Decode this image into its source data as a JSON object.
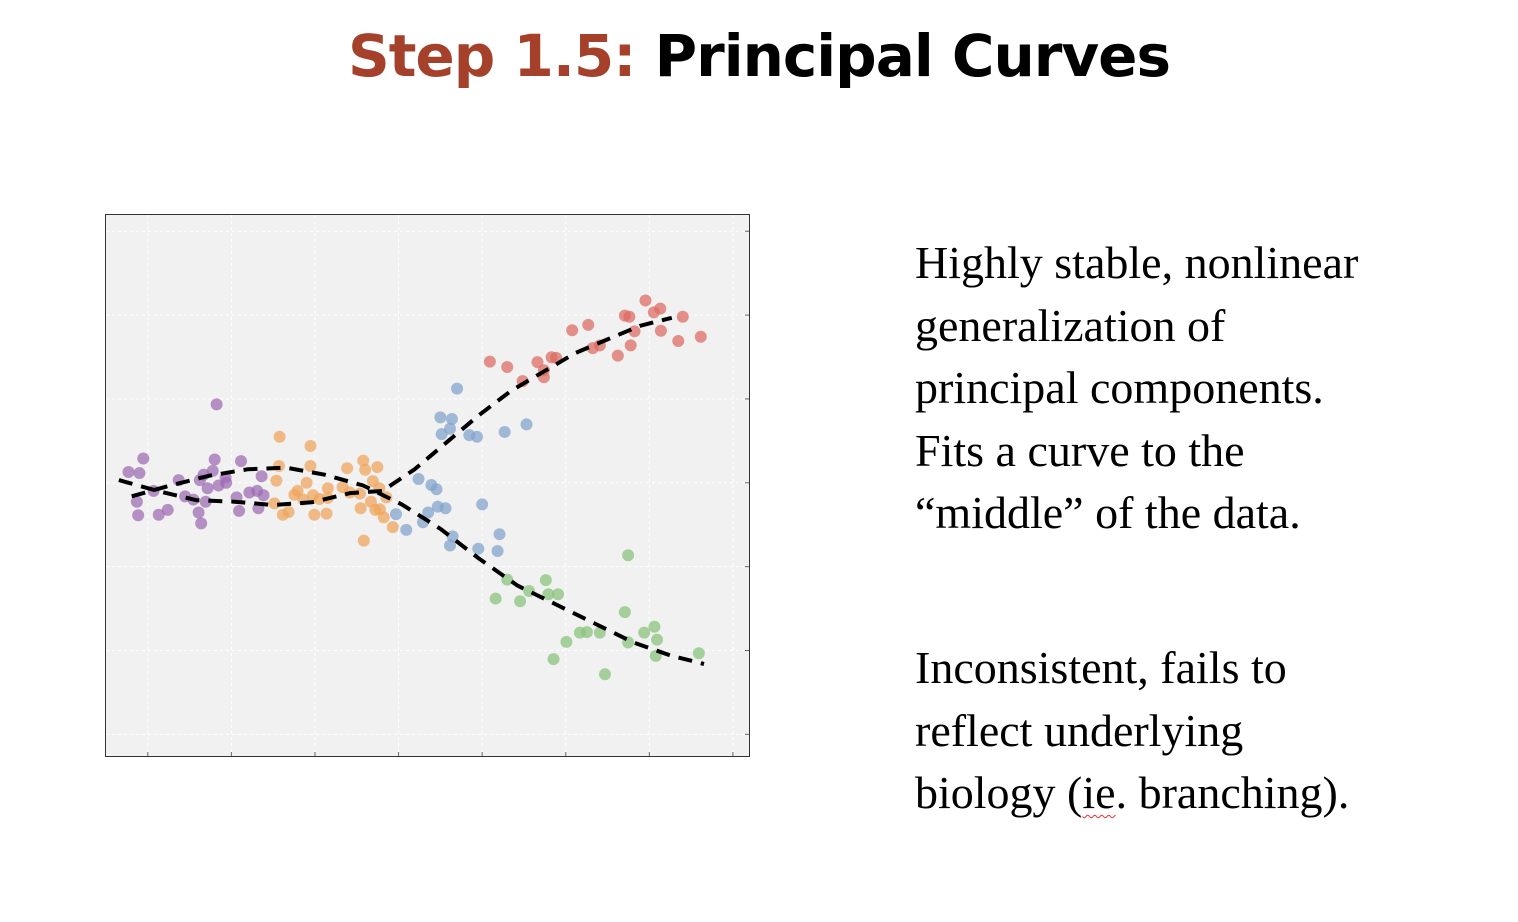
{
  "slide": {
    "title_prefix": "Step 1.5:",
    "title_main": "Principal Curves"
  },
  "text_block_1": {
    "lines": [
      "Highly stable, nonlinear",
      "generalization of",
      "principal components.",
      "Fits a curve to the",
      "“middle” of the data."
    ]
  },
  "text_block_2": {
    "lines": [
      "Inconsistent, fails to",
      "reflect underlying"
    ],
    "line3_before": "biology (",
    "line3_flagged": "ie",
    "line3_after": ". branching)."
  },
  "colors": {
    "title_accent": "#a5402a",
    "purple": "#9d6ab3",
    "orange": "#f0a35a",
    "blue": "#7fa2cc",
    "red": "#de6a61",
    "green": "#86c27a",
    "curve": "#000000",
    "plot_bg": "#f1f1f1"
  },
  "chart_data": {
    "type": "scatter",
    "title": "",
    "xlabel": "",
    "ylabel": "",
    "xlim": [
      0,
      100
    ],
    "ylim": [
      0,
      100
    ],
    "grid": true,
    "series": [
      {
        "color_key": "purple",
        "points": [
          [
            3.5,
            52.5
          ],
          [
            5.2,
            52.3
          ],
          [
            5.8,
            55
          ],
          [
            4.8,
            47
          ],
          [
            5,
            44.5
          ],
          [
            7.4,
            49
          ],
          [
            8.2,
            44.6
          ],
          [
            9.6,
            45.5
          ],
          [
            11.3,
            51
          ],
          [
            12.3,
            48
          ],
          [
            13.6,
            47.4
          ],
          [
            14.4,
            45
          ],
          [
            14.8,
            43
          ],
          [
            15.2,
            52
          ],
          [
            14.6,
            51
          ],
          [
            15.5,
            47
          ],
          [
            16.6,
            52.7
          ],
          [
            16.9,
            54.8
          ],
          [
            17.2,
            65
          ],
          [
            17.5,
            50
          ],
          [
            18.7,
            50.5
          ],
          [
            18.6,
            51.5
          ],
          [
            20.3,
            47.8
          ],
          [
            20.7,
            45.3
          ],
          [
            21,
            54.5
          ],
          [
            22.3,
            48.7
          ],
          [
            23.7,
            45.8
          ],
          [
            24.2,
            51.7
          ],
          [
            23.5,
            49
          ],
          [
            24.5,
            48.2
          ],
          [
            15.8,
            49.5
          ]
        ]
      },
      {
        "color_key": "orange",
        "points": [
          [
            26.2,
            46.7
          ],
          [
            26.5,
            50.9
          ],
          [
            26.9,
            53.6
          ],
          [
            27,
            59
          ],
          [
            27.5,
            44.6
          ],
          [
            28.4,
            45.1
          ],
          [
            29.3,
            48.3
          ],
          [
            29.8,
            49
          ],
          [
            30.7,
            47.4
          ],
          [
            31.2,
            50.5
          ],
          [
            32.2,
            48.2
          ],
          [
            31.8,
            53.6
          ],
          [
            31.8,
            57.3
          ],
          [
            32.4,
            44.6
          ],
          [
            33.2,
            47.5
          ],
          [
            34.5,
            49.5
          ],
          [
            34.5,
            47.7
          ],
          [
            34.3,
            44.8
          ],
          [
            36.8,
            49.7
          ],
          [
            37.5,
            53.2
          ],
          [
            37.9,
            48.7
          ],
          [
            39.5,
            48.5
          ],
          [
            39.6,
            45.8
          ],
          [
            40.3,
            52.9
          ],
          [
            41.9,
            45.5
          ],
          [
            41.2,
            47
          ],
          [
            42.5,
            49.5
          ],
          [
            40,
            54.6
          ],
          [
            42.6,
            45.6
          ],
          [
            43.6,
            47.8
          ],
          [
            42.2,
            53.4
          ],
          [
            40.1,
            39.8
          ],
          [
            44.6,
            42.3
          ],
          [
            43.2,
            44.1
          ],
          [
            41.5,
            50.8
          ]
        ]
      },
      {
        "color_key": "blue",
        "points": [
          [
            45.1,
            44.7
          ],
          [
            46.7,
            41.8
          ],
          [
            48.6,
            51.2
          ],
          [
            49.3,
            43.2
          ],
          [
            50.1,
            45
          ],
          [
            50.6,
            50.1
          ],
          [
            51.6,
            46.1
          ],
          [
            51.4,
            49.3
          ],
          [
            52.8,
            45.8
          ],
          [
            52,
            62.6
          ],
          [
            52.2,
            59.5
          ],
          [
            53.5,
            60.5
          ],
          [
            53.8,
            62.3
          ],
          [
            53.9,
            40.6
          ],
          [
            53.5,
            38.9
          ],
          [
            54.6,
            67.9
          ],
          [
            56.5,
            59.3
          ],
          [
            57.7,
            59
          ],
          [
            57.9,
            38.3
          ],
          [
            58.5,
            46.5
          ],
          [
            60.9,
            37.9
          ],
          [
            61.2,
            41
          ],
          [
            62,
            59.9
          ],
          [
            65.4,
            61.3
          ]
        ]
      },
      {
        "color_key": "red",
        "points": [
          [
            59.7,
            72.9
          ],
          [
            62.4,
            71.9
          ],
          [
            64.8,
            69.3
          ],
          [
            67.1,
            72.8
          ],
          [
            68.1,
            71.3
          ],
          [
            69.3,
            73.7
          ],
          [
            68.1,
            70
          ],
          [
            70,
            73.6
          ],
          [
            72.5,
            78.7
          ],
          [
            75,
            79.7
          ],
          [
            75.7,
            75.4
          ],
          [
            76.8,
            75.9
          ],
          [
            79.6,
            74
          ],
          [
            80.7,
            81.4
          ],
          [
            81.4,
            81.2
          ],
          [
            82.2,
            78.5
          ],
          [
            81.6,
            75.9
          ],
          [
            83.9,
            84.2
          ],
          [
            85.2,
            82
          ],
          [
            86.2,
            82.7
          ],
          [
            86.3,
            78.6
          ],
          [
            89,
            76.7
          ],
          [
            89.7,
            81.2
          ],
          [
            92.5,
            77.5
          ]
        ]
      },
      {
        "color_key": "green",
        "points": [
          [
            60.6,
            29.1
          ],
          [
            62.4,
            32.6
          ],
          [
            64.4,
            28.6
          ],
          [
            65.8,
            30.5
          ],
          [
            68.4,
            32.5
          ],
          [
            68.8,
            29.9
          ],
          [
            70.3,
            29.9
          ],
          [
            69.6,
            17.9
          ],
          [
            71.6,
            21.1
          ],
          [
            73.7,
            22.8
          ],
          [
            74.8,
            22.9
          ],
          [
            76.8,
            22.8
          ],
          [
            77.6,
            15.1
          ],
          [
            80.7,
            26.6
          ],
          [
            81.2,
            21
          ],
          [
            81.2,
            37.1
          ],
          [
            83.7,
            22.8
          ],
          [
            85.3,
            23.9
          ],
          [
            85.5,
            18.5
          ],
          [
            85.7,
            21.5
          ],
          [
            92.2,
            19
          ]
        ]
      }
    ],
    "curves": [
      {
        "name": "",
        "points": [
          [
            2,
            51
          ],
          [
            8,
            49
          ],
          [
            14,
            47.3
          ],
          [
            20,
            47
          ],
          [
            26,
            46.4
          ],
          [
            32,
            46.9
          ],
          [
            38,
            48.6
          ],
          [
            43,
            49
          ],
          [
            48,
            53
          ],
          [
            53,
            58
          ],
          [
            58,
            63
          ],
          [
            63,
            67.5
          ],
          [
            68,
            71
          ],
          [
            73,
            74.5
          ],
          [
            78,
            77
          ],
          [
            83,
            79.5
          ],
          [
            88,
            81
          ]
        ]
      },
      {
        "name": "",
        "points": [
          [
            4,
            48
          ],
          [
            10,
            50
          ],
          [
            16,
            51.8
          ],
          [
            22,
            53
          ],
          [
            28,
            53.3
          ],
          [
            34,
            52
          ],
          [
            40,
            50
          ],
          [
            46,
            46.5
          ],
          [
            52,
            42
          ],
          [
            58,
            36.5
          ],
          [
            64,
            31.5
          ],
          [
            70,
            28
          ],
          [
            76,
            24.5
          ],
          [
            82,
            21
          ],
          [
            88,
            18.5
          ],
          [
            93,
            17
          ]
        ]
      }
    ]
  }
}
